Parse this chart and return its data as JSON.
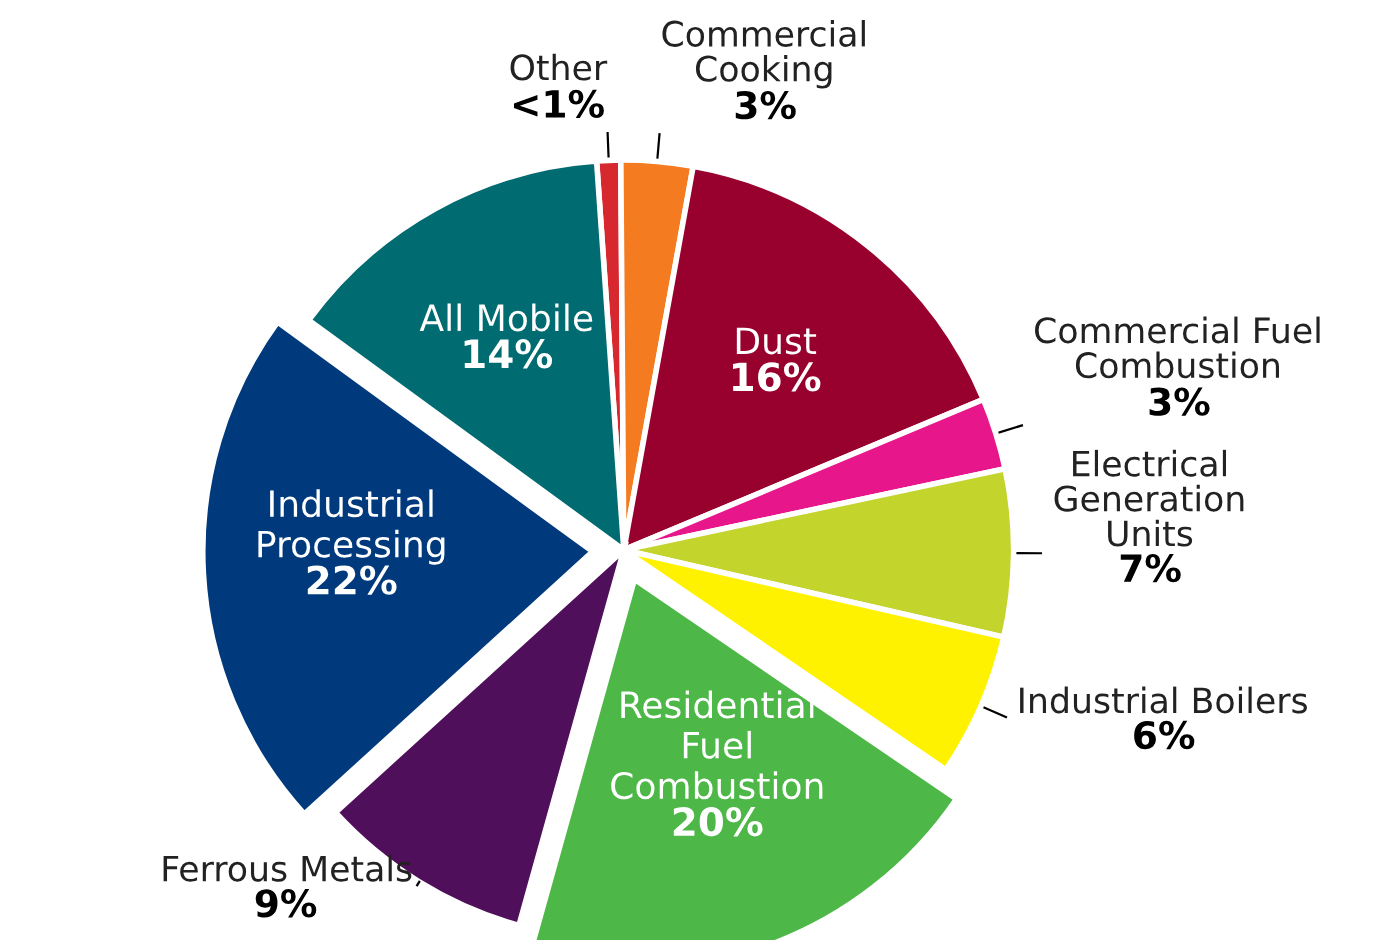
{
  "chart_data": {
    "type": "pie",
    "categories": [
      "Other",
      "Commercial\nCooking",
      "Dust",
      "Commercial Fuel\nCombustion",
      "Electrical\nGeneration\nUnits",
      "Industrial Boilers",
      "Residential\nFuel\nCombustion",
      "Ferrous Metals",
      "Industrial\nProcessing",
      "All Mobile"
    ],
    "values": [
      1,
      3,
      16,
      3,
      7,
      6,
      20,
      9,
      22,
      14
    ],
    "value_labels": [
      "<1%",
      "3%",
      "16%",
      "3%",
      "7%",
      "6%",
      "20%",
      "9%",
      "22%",
      "14%"
    ],
    "colors": [
      "#d7282f",
      "#f47b20",
      "#98002e",
      "#e8168b",
      "#c3d52d",
      "#fff200",
      "#4db848",
      "#4f0f5a",
      "#003a7d",
      "#006b70"
    ]
  }
}
